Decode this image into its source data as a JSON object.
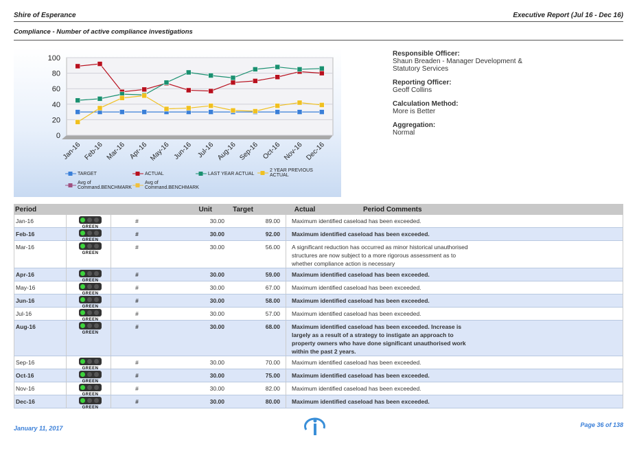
{
  "header": {
    "left": "Shire of Esperance",
    "right": "Executive Report (Jul 16 - Dec 16)",
    "subtitle": "Compliance - Number of active compliance investigations"
  },
  "chart_data": {
    "type": "line",
    "categories": [
      "Jan-16",
      "Feb-16",
      "Mar-16",
      "Apr-16",
      "May-16",
      "Jun-16",
      "Jul-16",
      "Aug-16",
      "Sep-16",
      "Oct-16",
      "Nov-16",
      "Dec-16"
    ],
    "series": [
      {
        "name": "TARGET",
        "color": "#3a7fd8",
        "values": [
          30,
          30,
          30,
          30,
          30,
          30,
          30,
          30,
          30,
          30,
          30,
          30
        ]
      },
      {
        "name": "ACTUAL",
        "color": "#b8101e",
        "values": [
          89,
          92,
          56,
          59,
          67,
          58,
          57,
          68,
          70,
          75,
          82,
          80
        ]
      },
      {
        "name": "LAST YEAR ACTUAL",
        "color": "#1a9070",
        "values": [
          45,
          47,
          53,
          52,
          68,
          81,
          77,
          74,
          85,
          88,
          85,
          86
        ]
      },
      {
        "name": "2 YEAR PREVIOUS ACTUAL",
        "color": "#f0c020",
        "values": [
          17,
          35,
          48,
          51,
          34,
          35,
          38,
          32,
          31,
          38,
          42,
          39
        ]
      }
    ],
    "benchmarks": [
      {
        "name": "Avg of Command.BENCHMARK",
        "color": "#a05080"
      },
      {
        "name": "Avg of Command.BENCHMARK",
        "color": "#f0c040"
      }
    ],
    "ylim": [
      0,
      100
    ],
    "yticks": [
      0,
      20,
      40,
      60,
      80,
      100
    ],
    "grid": true
  },
  "info": [
    {
      "label": "Responsible Officer:",
      "text": "Shaun Breaden - Manager Development & Statutory Services"
    },
    {
      "label": "Reporting Officer:",
      "text": "Geoff Collins"
    },
    {
      "label": "Calculation Method:",
      "text": "More is Better"
    },
    {
      "label": "Aggregation:",
      "text": "Normal"
    }
  ],
  "table": {
    "columns": [
      "Period",
      "Unit",
      "Target",
      "Actual",
      "Period Comments"
    ],
    "rows": [
      [
        "Jan-16",
        "GREEN",
        "#",
        "30.00",
        "89.00",
        "Maximum identified caseload has been exceeded."
      ],
      [
        "Feb-16",
        "GREEN",
        "#",
        "30.00",
        "92.00",
        "Maximum identified caseload has been exceeded."
      ],
      [
        "Mar-16",
        "GREEN",
        "#",
        "30.00",
        "56.00",
        "A significant reduction has occurred as minor historical unauthorised structures are now subject to a more rigorous assessment as to whether compliance action is necessary"
      ],
      [
        "Apr-16",
        "GREEN",
        "#",
        "30.00",
        "59.00",
        "Maximum identified caseload has been exceeded."
      ],
      [
        "May-16",
        "GREEN",
        "#",
        "30.00",
        "67.00",
        "Maximum identified caseload has been exceeded."
      ],
      [
        "Jun-16",
        "GREEN",
        "#",
        "30.00",
        "58.00",
        "Maximum identified caseload has been exceeded."
      ],
      [
        "Jul-16",
        "GREEN",
        "#",
        "30.00",
        "57.00",
        "Maximum identified caseload has been exceeded."
      ],
      [
        "Aug-16",
        "GREEN",
        "#",
        "30.00",
        "68.00",
        "Maximum identified caseload has been exceeded. Increase is largely as a result of a strategy to instigate an approach to property owners who have done significant unauthorised work within the past 2 years."
      ],
      [
        "Sep-16",
        "GREEN",
        "#",
        "30.00",
        "70.00",
        "Maximum identified caseload has been exceeded."
      ],
      [
        "Oct-16",
        "GREEN",
        "#",
        "30.00",
        "75.00",
        "Maximum identified caseload has been exceeded."
      ],
      [
        "Nov-16",
        "GREEN",
        "#",
        "30.00",
        "82.00",
        "Maximum identified caseload has been exceeded."
      ],
      [
        "Dec-16",
        "GREEN",
        "#",
        "30.00",
        "80.00",
        "Maximum identified caseload has been exceeded."
      ]
    ]
  },
  "footer": {
    "date": "January 11, 2017",
    "page": "Page 36 of 138"
  }
}
